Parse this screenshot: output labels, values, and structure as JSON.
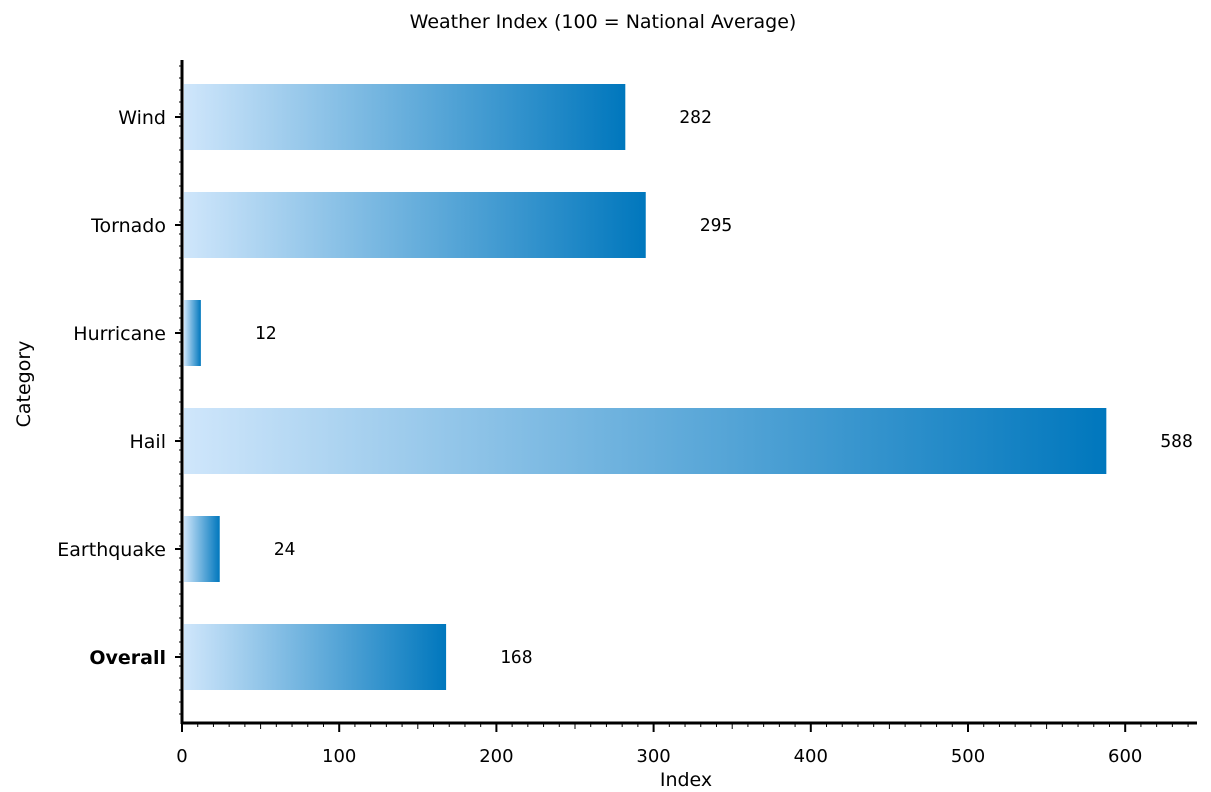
{
  "chart_data": {
    "type": "bar",
    "orientation": "horizontal",
    "title": "Weather Index (100 = National Average)",
    "xlabel": "Index",
    "ylabel": "Category",
    "categories": [
      "Wind",
      "Tornado",
      "Hurricane",
      "Hail",
      "Earthquake",
      "Overall"
    ],
    "bold_categories": [
      "Overall"
    ],
    "values": [
      282,
      295,
      12,
      588,
      24,
      168
    ],
    "data_labels": [
      "282",
      "295",
      "12",
      "588",
      "24",
      "168"
    ],
    "xlim": [
      0,
      650
    ],
    "x_ticks": [
      0,
      100,
      200,
      300,
      400,
      500,
      600
    ],
    "x_tick_labels": [
      "0",
      "100",
      "200",
      "300",
      "400",
      "500",
      "600"
    ],
    "grid": false,
    "legend": "none",
    "colors": {
      "bar_light": "#cfe6fb",
      "bar_dark": "#0077bd",
      "axis": "#000000"
    }
  }
}
